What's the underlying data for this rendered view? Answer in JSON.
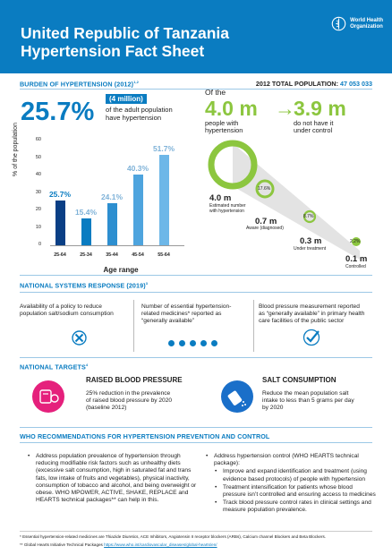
{
  "header": {
    "title_line1": "United Republic of Tanzania",
    "title_line2": "Hypertension Fact Sheet",
    "who_line1": "World Health",
    "who_line2": "Organization"
  },
  "burden": {
    "title": "BURDEN OF HYPERTENSION (2012)",
    "title_sup": "1,2",
    "population_label": "2012 TOTAL POPULATION:",
    "population_value": "47 053 033",
    "big_percent": "25.7%",
    "millions": "(4 million)",
    "millions_desc_1": "of the adult population",
    "millions_desc_2": "have hypertension"
  },
  "chart_data": {
    "type": "bar",
    "categories": [
      "25-64",
      "25-34",
      "35-44",
      "45-54",
      "55-64"
    ],
    "values": [
      25.7,
      15.4,
      24.1,
      40.3,
      51.7
    ],
    "value_labels": [
      "25.7%",
      "15.4%",
      "24.1%",
      "40.3%",
      "51.7%"
    ],
    "label_colors": [
      "#0a7cc1",
      "#7fb2d8",
      "#7fb2d8",
      "#7fb2d8",
      "#7fb2d8"
    ],
    "bar_colors": [
      "#0a3f85",
      "#0a7cc1",
      "#2d8fd0",
      "#4ea4de",
      "#6db7e8"
    ],
    "title": "",
    "xlabel": "Age range",
    "ylabel": "% of the population",
    "ylim": [
      0,
      60
    ],
    "yticks": [
      "0",
      "10",
      "20",
      "30",
      "40",
      "50",
      "60"
    ],
    "grid": false
  },
  "cascade": {
    "of_the": "Of the",
    "value_with": "4.0 m",
    "value_not": "3.9 m",
    "arrow": "→",
    "with_1": "people with",
    "with_2": "hypertension",
    "not_1": "do not have it",
    "not_2": "under control",
    "stages": [
      {
        "value": "4.0 m",
        "label_1": "Estimated number",
        "label_2": "with hypertension",
        "pct": ""
      },
      {
        "value": "0.7 m",
        "label_1": "Aware (diagnosed)",
        "label_2": "",
        "pct": "17.6%"
      },
      {
        "value": "0.3 m",
        "label_1": "Under treatment",
        "label_2": "",
        "pct": "8.7%"
      },
      {
        "value": "0.1 m",
        "label_1": "Controlled",
        "label_2": "",
        "pct": "2.2%"
      }
    ]
  },
  "national": {
    "title": "NATIONAL SYSTEMS RESPONSE (2019)",
    "title_sup": "3",
    "col1_1": "Availability of a policy to reduce",
    "col1_2": "population salt/sodium consumption",
    "col2_1": "Number of essential hypertension-",
    "col2_2": "related medicines* reported as",
    "col2_3": "“generally available”",
    "col3_1": "Blood pressure measurement reported",
    "col3_2": "as “generally available” in primary health",
    "col3_3": "care facilities of the public sector",
    "medicine_count": 5
  },
  "targets": {
    "title": "NATIONAL TARGETS",
    "title_sup": "4",
    "bp_title": "RAISED BLOOD PRESSURE",
    "bp_1": "25% reduction in the prevalence",
    "bp_2": "of raised blood pressure by 2020",
    "bp_3": "(baseline 2012)",
    "salt_title": "SALT CONSUMPTION",
    "salt_1": "Reduce the mean population salt",
    "salt_2": "intake to less than 5 grams per day",
    "salt_3": "by 2020"
  },
  "recommendations": {
    "title": "WHO RECOMMENDATIONS FOR HYPERTENSION PREVENTION AND CONTROL",
    "left": "Address population prevalence of hypertension through reducing modifiable risk factors such as unhealthy diets (excessive salt consumption, high in saturated fat and trans fats, low intake of fruits and vegetables), physical inactivity, consumption of tobacco and alcohol, and being overweight or obese. WHO MPOWER, ACTIVE, SHAKE, REPLACE and HEARTS technical packages** can help in this.",
    "right_main": "Address hypertension control (WHO HEARTS technical package):",
    "right_sub": [
      "Improve and expand identification and treatment (using evidence based protocols) of people with hypertension",
      "Treatment intensification for patients whose blood pressure isn’t controlled and ensuring access to medicines",
      "Track blood pressure control rates in clinical settings and measure population prevalence."
    ]
  },
  "footnotes": {
    "f1": "* Essential hypertension-related medicines are Thiazide Diuretics, ACE Inhibitors, Angiotensin II receptor blockers (ARBs), Calcium channel Blockers and Beta Blockers.",
    "f2_prefix": "** Global Hearts Initiative Technical Packages",
    "f2_link": "https://www.who.int/cardiovascular_diseases/global-hearts/en/"
  },
  "colors": {
    "brand_blue": "#0a7cc1",
    "accent_green": "#8cc63f",
    "target_pink": "#e5207c",
    "target_blue": "#1a6fc9"
  }
}
